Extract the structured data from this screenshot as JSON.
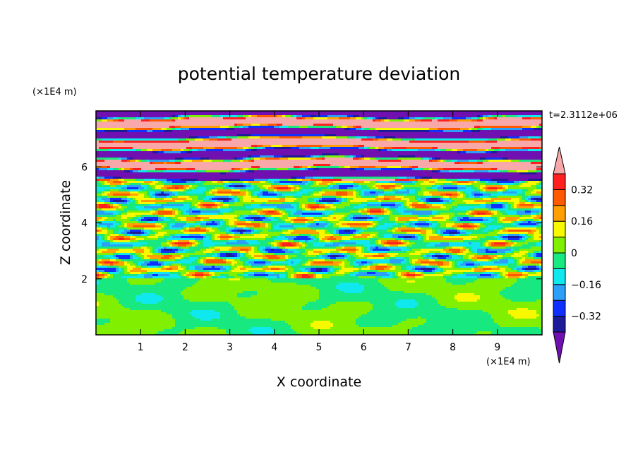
{
  "chart_data": {
    "type": "heatmap",
    "title": "potential temperature deviation",
    "xlabel": "X coordinate",
    "ylabel": "Z coordinate",
    "x_unit": "(×1E4 m)",
    "y_unit": "(×1E4 m)",
    "time_label": "t=2.3112e+06",
    "xlim": [
      0,
      10
    ],
    "ylim": [
      0,
      8
    ],
    "x_ticks": [
      1,
      2,
      3,
      4,
      5,
      6,
      7,
      8,
      9
    ],
    "y_ticks": [
      2,
      4,
      6
    ],
    "colorbar": {
      "levels": [
        -0.4,
        -0.32,
        -0.24,
        -0.16,
        -0.08,
        0,
        0.08,
        0.16,
        0.24,
        0.32,
        0.4
      ],
      "tick_values": [
        0.32,
        0.16,
        0,
        -0.16,
        -0.32
      ],
      "tick_labels": [
        "0.32",
        "0.16",
        "0",
        "−0.16",
        "−0.32"
      ],
      "colors": [
        "#7010b0",
        "#1c1c98",
        "#1030ff",
        "#2ca0f8",
        "#10e8f0",
        "#18e880",
        "#80f000",
        "#f8f800",
        "#ffa000",
        "#ff5a00",
        "#ff2020",
        "#f8a8a8"
      ]
    },
    "bands": [
      {
        "z_min": 0,
        "z_max": 2.0,
        "dominant": "0 to 0.08 / -0.08 to 0",
        "description_value": 0
      },
      {
        "z_min": 2.0,
        "z_max": 5.5,
        "dominant": "mixed -0.4 to 0.4",
        "description_value": 0
      },
      {
        "z_min": 5.5,
        "z_max": 8.0,
        "dominant": "alternating < -0.4 and > 0.4",
        "description_value": 0
      }
    ]
  }
}
